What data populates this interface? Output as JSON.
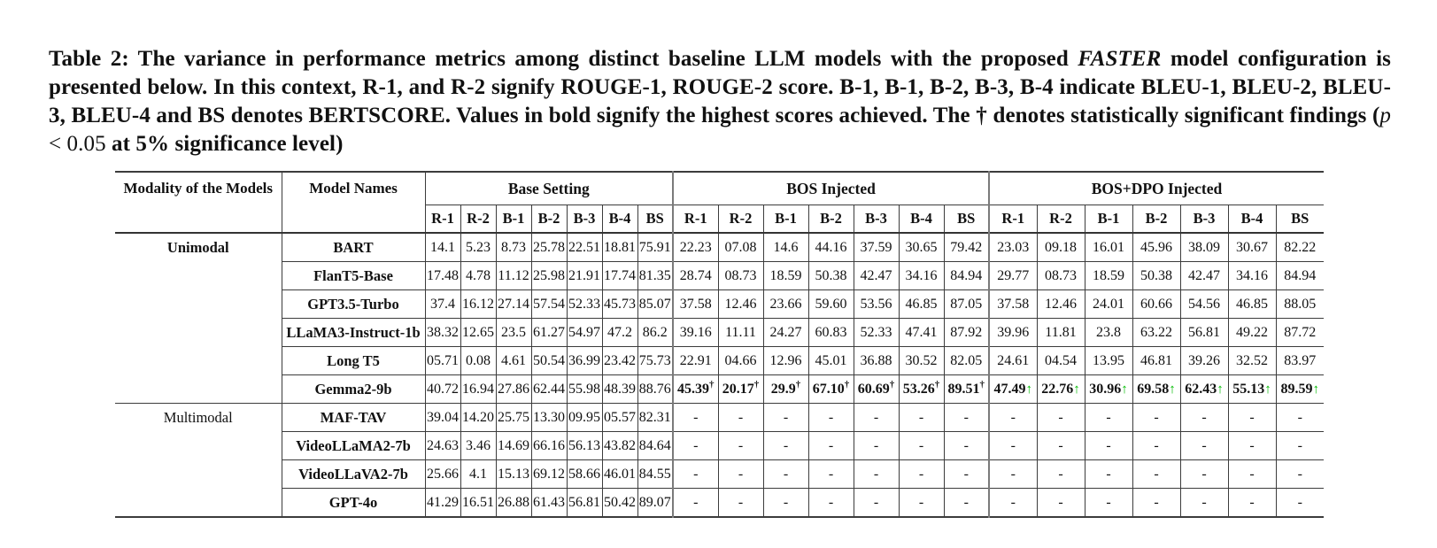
{
  "colors": {
    "arrow_green": "#00BB00",
    "text": "#111111",
    "border": "#3C3C3C"
  },
  "caption": {
    "parts": [
      {
        "text": "Table 2: The variance in performance metrics among distinct baseline LLM models with the proposed ",
        "style": "bold"
      },
      {
        "text": "FASTER",
        "style": "bold-italic"
      },
      {
        "text": " model configuration is presented below. In this context, R-1, and R-2 signify ROUGE-1, ROUGE-2 score. B-1, B-1, B-2, B-3, B-4 indicate BLEU-1, BLEU-2, BLEU-3, BLEU-4 and BS denotes BERTSCORE. Values in bold signify the highest scores achieved. The † denotes statistically significant findings (",
        "style": "bold"
      },
      {
        "text": "p",
        "style": "regular-italic"
      },
      {
        "text": " < 0.05",
        "style": "regular"
      },
      {
        "text": " at 5% significance level)",
        "style": "bold"
      }
    ]
  },
  "table": {
    "headers": {
      "modality": "Modality of the Models",
      "model": "Model Names"
    },
    "groups": [
      {
        "label": "Base Setting",
        "key": "base"
      },
      {
        "label": "BOS Injected",
        "key": "bos"
      },
      {
        "label": "BOS+DPO Injected",
        "key": "dpo"
      }
    ],
    "metrics": [
      "R-1",
      "R-2",
      "B-1",
      "B-2",
      "B-3",
      "B-4",
      "BS"
    ],
    "rows": [
      {
        "modality": "Unimodal",
        "modality_rowspan": 6,
        "modality_bold": true,
        "model": "BART",
        "base": [
          "14.1",
          "5.23",
          "8.73",
          "25.78",
          "22.51",
          "18.81",
          "75.91"
        ],
        "bos": [
          "22.23",
          "07.08",
          "14.6",
          "44.16",
          "37.59",
          "30.65",
          "79.42"
        ],
        "dpo": [
          "23.03",
          "09.18",
          "16.01",
          "45.96",
          "38.09",
          "30.67",
          "82.22"
        ]
      },
      {
        "model": "FlanT5-Base",
        "base": [
          "17.48",
          "4.78",
          "11.12",
          "25.98",
          "21.91",
          "17.74",
          "81.35"
        ],
        "bos": [
          "28.74",
          "08.73",
          "18.59",
          "50.38",
          "42.47",
          "34.16",
          "84.94"
        ],
        "dpo": [
          "29.77",
          "08.73",
          "18.59",
          "50.38",
          "42.47",
          "34.16",
          "84.94"
        ]
      },
      {
        "model": "GPT3.5-Turbo",
        "base": [
          "37.4",
          "16.12",
          "27.14",
          "57.54",
          "52.33",
          "45.73",
          "85.07"
        ],
        "bos": [
          "37.58",
          "12.46",
          "23.66",
          "59.60",
          "53.56",
          "46.85",
          "87.05"
        ],
        "dpo": [
          "37.58",
          "12.46",
          "24.01",
          "60.66",
          "54.56",
          "46.85",
          "88.05"
        ]
      },
      {
        "model": "LLaMA3-Instruct-1b",
        "base": [
          "38.32",
          "12.65",
          "23.5",
          "61.27",
          "54.97",
          "47.2",
          "86.2"
        ],
        "bos": [
          "39.16",
          "11.11",
          "24.27",
          "60.83",
          "52.33",
          "47.41",
          "87.92"
        ],
        "dpo": [
          "39.96",
          "11.81",
          "23.8",
          "63.22",
          "56.81",
          "49.22",
          "87.72"
        ]
      },
      {
        "model": "Long T5",
        "base": [
          "05.71",
          "0.08",
          "4.61",
          "50.54",
          "36.99",
          "23.42",
          "75.73"
        ],
        "bos": [
          "22.91",
          "04.66",
          "12.96",
          "45.01",
          "36.88",
          "30.52",
          "82.05"
        ],
        "dpo": [
          "24.61",
          "04.54",
          "13.95",
          "46.81",
          "39.26",
          "32.52",
          "83.97"
        ]
      },
      {
        "model": "Gemma2-9b",
        "bos_bold": true,
        "dpo_bold": true,
        "base": [
          "40.72",
          "16.94",
          "27.86",
          "62.44",
          "55.98",
          "48.39",
          "88.76"
        ],
        "bos": [
          "45.39†",
          "20.17†",
          "29.9†",
          "67.10†",
          "60.69†",
          "53.26†",
          "89.51†"
        ],
        "dpo": [
          "47.49↑",
          "22.76↑",
          "30.96↑",
          "69.58↑",
          "62.43↑",
          "55.13↑",
          "89.59↑"
        ]
      },
      {
        "modality": "Multimodal",
        "modality_rowspan": 4,
        "modality_bold": false,
        "model": "MAF-TAV",
        "base": [
          "39.04",
          "14.20",
          "25.75",
          "13.30",
          "09.95",
          "05.57",
          "82.31"
        ],
        "bos": [
          "-",
          "-",
          "-",
          "-",
          "-",
          "-",
          "-"
        ],
        "dpo": [
          "-",
          "-",
          "-",
          "-",
          "-",
          "-",
          "-"
        ]
      },
      {
        "model": "VideoLLaMA2-7b",
        "base": [
          "24.63",
          "3.46",
          "14.69",
          "66.16",
          "56.13",
          "43.82",
          "84.64"
        ],
        "bos": [
          "-",
          "-",
          "-",
          "-",
          "-",
          "-",
          "-"
        ],
        "dpo": [
          "-",
          "-",
          "-",
          "-",
          "-",
          "-",
          "-"
        ]
      },
      {
        "model": "VideoLLaVA2-7b",
        "base": [
          "25.66",
          "4.1",
          "15.13",
          "69.12",
          "58.66",
          "46.01",
          "84.55"
        ],
        "bos": [
          "-",
          "-",
          "-",
          "-",
          "-",
          "-",
          "-"
        ],
        "dpo": [
          "-",
          "-",
          "-",
          "-",
          "-",
          "-",
          "-"
        ]
      },
      {
        "model": "GPT-4o",
        "base": [
          "41.29",
          "16.51",
          "26.88",
          "61.43",
          "56.81",
          "50.42",
          "89.07"
        ],
        "bos": [
          "-",
          "-",
          "-",
          "-",
          "-",
          "-",
          "-"
        ],
        "dpo": [
          "-",
          "-",
          "-",
          "-",
          "-",
          "-",
          "-"
        ]
      }
    ]
  }
}
